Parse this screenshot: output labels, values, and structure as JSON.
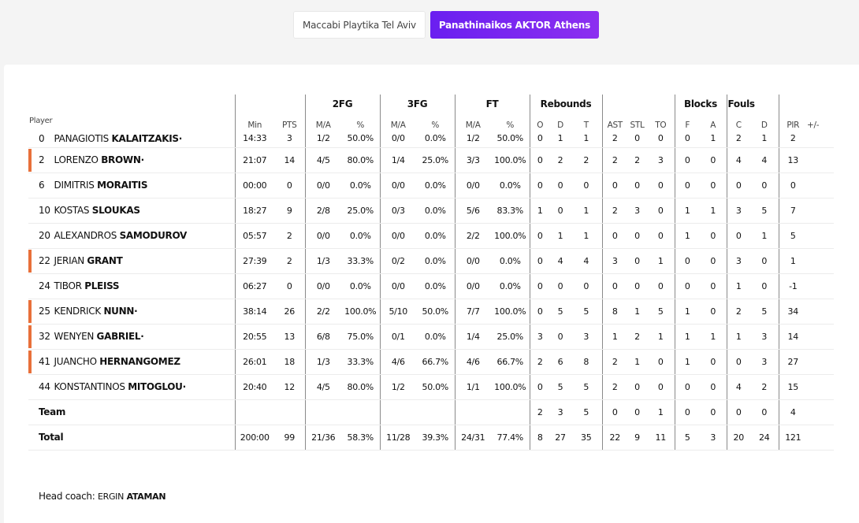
{
  "teams": [
    {
      "label": "Maccabi Playtika Tel Aviv",
      "active": false
    },
    {
      "label": "Panathinaikos AKTOR Athens",
      "active": true
    }
  ],
  "headers": {
    "player": "Player",
    "groups": {
      "fg2": "2FG",
      "fg3": "3FG",
      "ft": "FT",
      "rebounds": "Rebounds",
      "blocks": "Blocks",
      "fouls": "Fouls"
    },
    "min": "Min",
    "pts": "PTS",
    "ma": "M/A",
    "pct": "%",
    "o": "O",
    "d": "D",
    "t": "T",
    "ast": "AST",
    "stl": "STL",
    "to": "TO",
    "bf": "F",
    "ba": "A",
    "fc": "C",
    "fd": "D",
    "pir": "PIR",
    "pm": "+/-"
  },
  "players": [
    {
      "num": "0",
      "first": "PANAGIOTIS",
      "last": "KALAITZAKIS·",
      "starter": false,
      "min": "14:33",
      "pts": "3",
      "fg2": "1/2",
      "fg2p": "50.0%",
      "fg3": "0/0",
      "fg3p": "0.0%",
      "ft": "1/2",
      "ftp": "50.0%",
      "o": "0",
      "d": "1",
      "t": "1",
      "ast": "2",
      "stl": "0",
      "to": "0",
      "bf": "0",
      "ba": "1",
      "fc": "2",
      "fd": "1",
      "pir": "2",
      "pm": ""
    },
    {
      "num": "2",
      "first": "LORENZO",
      "last": "BROWN·",
      "starter": true,
      "min": "21:07",
      "pts": "14",
      "fg2": "4/5",
      "fg2p": "80.0%",
      "fg3": "1/4",
      "fg3p": "25.0%",
      "ft": "3/3",
      "ftp": "100.0%",
      "o": "0",
      "d": "2",
      "t": "2",
      "ast": "2",
      "stl": "2",
      "to": "3",
      "bf": "0",
      "ba": "0",
      "fc": "4",
      "fd": "4",
      "pir": "13",
      "pm": ""
    },
    {
      "num": "6",
      "first": "DIMITRIS",
      "last": "MORAITIS",
      "starter": false,
      "min": "00:00",
      "pts": "0",
      "fg2": "0/0",
      "fg2p": "0.0%",
      "fg3": "0/0",
      "fg3p": "0.0%",
      "ft": "0/0",
      "ftp": "0.0%",
      "o": "0",
      "d": "0",
      "t": "0",
      "ast": "0",
      "stl": "0",
      "to": "0",
      "bf": "0",
      "ba": "0",
      "fc": "0",
      "fd": "0",
      "pir": "0",
      "pm": ""
    },
    {
      "num": "10",
      "first": "KOSTAS",
      "last": "SLOUKAS",
      "starter": false,
      "min": "18:27",
      "pts": "9",
      "fg2": "2/8",
      "fg2p": "25.0%",
      "fg3": "0/3",
      "fg3p": "0.0%",
      "ft": "5/6",
      "ftp": "83.3%",
      "o": "1",
      "d": "0",
      "t": "1",
      "ast": "2",
      "stl": "3",
      "to": "0",
      "bf": "1",
      "ba": "1",
      "fc": "3",
      "fd": "5",
      "pir": "7",
      "pm": ""
    },
    {
      "num": "20",
      "first": "ALEXANDROS",
      "last": "SAMODUROV",
      "starter": false,
      "min": "05:57",
      "pts": "2",
      "fg2": "0/0",
      "fg2p": "0.0%",
      "fg3": "0/0",
      "fg3p": "0.0%",
      "ft": "2/2",
      "ftp": "100.0%",
      "o": "0",
      "d": "1",
      "t": "1",
      "ast": "0",
      "stl": "0",
      "to": "0",
      "bf": "1",
      "ba": "0",
      "fc": "0",
      "fd": "1",
      "pir": "5",
      "pm": ""
    },
    {
      "num": "22",
      "first": "JERIAN",
      "last": "GRANT",
      "starter": true,
      "min": "27:39",
      "pts": "2",
      "fg2": "1/3",
      "fg2p": "33.3%",
      "fg3": "0/2",
      "fg3p": "0.0%",
      "ft": "0/0",
      "ftp": "0.0%",
      "o": "0",
      "d": "4",
      "t": "4",
      "ast": "3",
      "stl": "0",
      "to": "1",
      "bf": "0",
      "ba": "0",
      "fc": "3",
      "fd": "0",
      "pir": "1",
      "pm": ""
    },
    {
      "num": "24",
      "first": "TIBOR",
      "last": "PLEISS",
      "starter": false,
      "min": "06:27",
      "pts": "0",
      "fg2": "0/0",
      "fg2p": "0.0%",
      "fg3": "0/0",
      "fg3p": "0.0%",
      "ft": "0/0",
      "ftp": "0.0%",
      "o": "0",
      "d": "0",
      "t": "0",
      "ast": "0",
      "stl": "0",
      "to": "0",
      "bf": "0",
      "ba": "0",
      "fc": "1",
      "fd": "0",
      "pir": "-1",
      "pm": ""
    },
    {
      "num": "25",
      "first": "KENDRICK",
      "last": "NUNN·",
      "starter": true,
      "min": "38:14",
      "pts": "26",
      "fg2": "2/2",
      "fg2p": "100.0%",
      "fg3": "5/10",
      "fg3p": "50.0%",
      "ft": "7/7",
      "ftp": "100.0%",
      "o": "0",
      "d": "5",
      "t": "5",
      "ast": "8",
      "stl": "1",
      "to": "5",
      "bf": "1",
      "ba": "0",
      "fc": "2",
      "fd": "5",
      "pir": "34",
      "pm": ""
    },
    {
      "num": "32",
      "first": "WENYEN",
      "last": "GABRIEL·",
      "starter": true,
      "min": "20:55",
      "pts": "13",
      "fg2": "6/8",
      "fg2p": "75.0%",
      "fg3": "0/1",
      "fg3p": "0.0%",
      "ft": "1/4",
      "ftp": "25.0%",
      "o": "3",
      "d": "0",
      "t": "3",
      "ast": "1",
      "stl": "2",
      "to": "1",
      "bf": "1",
      "ba": "1",
      "fc": "1",
      "fd": "3",
      "pir": "14",
      "pm": ""
    },
    {
      "num": "41",
      "first": "JUANCHO",
      "last": "HERNANGOMEZ",
      "starter": true,
      "min": "26:01",
      "pts": "18",
      "fg2": "1/3",
      "fg2p": "33.3%",
      "fg3": "4/6",
      "fg3p": "66.7%",
      "ft": "4/6",
      "ftp": "66.7%",
      "o": "2",
      "d": "6",
      "t": "8",
      "ast": "2",
      "stl": "1",
      "to": "0",
      "bf": "1",
      "ba": "0",
      "fc": "0",
      "fd": "3",
      "pir": "27",
      "pm": ""
    },
    {
      "num": "44",
      "first": "KONSTANTINOS",
      "last": "MITOGLOU·",
      "starter": false,
      "min": "20:40",
      "pts": "12",
      "fg2": "4/5",
      "fg2p": "80.0%",
      "fg3": "1/2",
      "fg3p": "50.0%",
      "ft": "1/1",
      "ftp": "100.0%",
      "o": "0",
      "d": "5",
      "t": "5",
      "ast": "2",
      "stl": "0",
      "to": "0",
      "bf": "0",
      "ba": "0",
      "fc": "4",
      "fd": "2",
      "pir": "15",
      "pm": ""
    }
  ],
  "team_row": {
    "label": "Team",
    "min": "",
    "pts": "",
    "fg2": "",
    "fg2p": "",
    "fg3": "",
    "fg3p": "",
    "ft": "",
    "ftp": "",
    "o": "2",
    "d": "3",
    "t": "5",
    "ast": "0",
    "stl": "0",
    "to": "1",
    "bf": "0",
    "ba": "0",
    "fc": "0",
    "fd": "0",
    "pir": "4",
    "pm": ""
  },
  "total_row": {
    "label": "Total",
    "min": "200:00",
    "pts": "99",
    "fg2": "21/36",
    "fg2p": "58.3%",
    "fg3": "11/28",
    "fg3p": "39.3%",
    "ft": "24/31",
    "ftp": "77.4%",
    "o": "8",
    "d": "27",
    "t": "35",
    "ast": "22",
    "stl": "9",
    "to": "11",
    "bf": "5",
    "ba": "3",
    "fc": "20",
    "fd": "24",
    "pir": "121",
    "pm": ""
  },
  "coach": {
    "label": "Head coach:",
    "first": "ERGIN",
    "last": "ATAMAN"
  },
  "colors": {
    "accent": "#7b24f0",
    "starter": "#e8703a"
  }
}
